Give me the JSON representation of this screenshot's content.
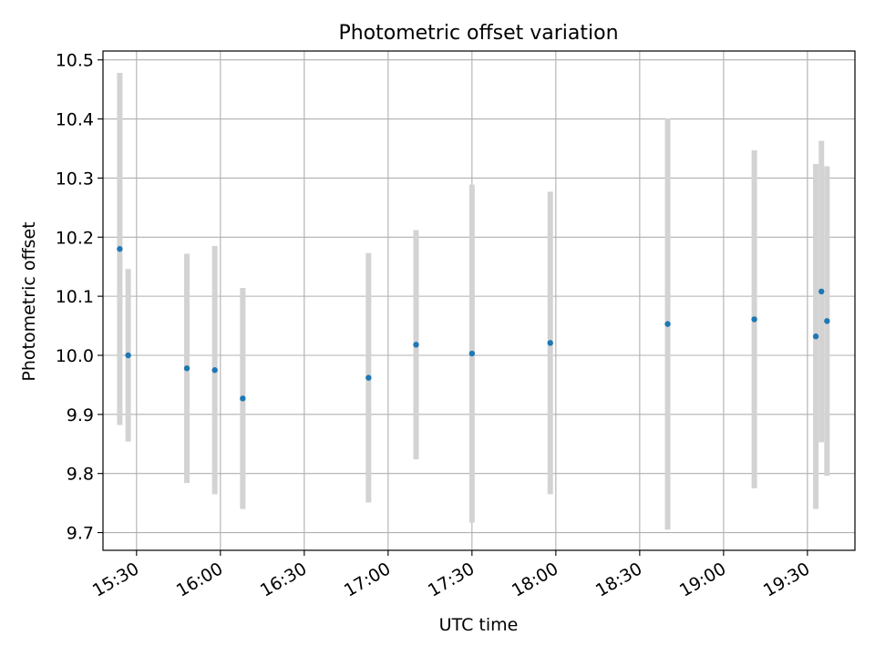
{
  "chart_data": {
    "type": "scatter",
    "title": "Photometric offset variation",
    "xlabel": "UTC time",
    "ylabel": "Photometric offset",
    "x_tick_labels": [
      "15:30",
      "16:00",
      "16:30",
      "17:00",
      "17:30",
      "18:00",
      "18:30",
      "19:00",
      "19:30"
    ],
    "y_tick_labels": [
      "9.7",
      "9.8",
      "9.9",
      "10.0",
      "10.1",
      "10.2",
      "10.3",
      "10.4",
      "10.5"
    ],
    "xlim": [
      "15:18",
      "19:47"
    ],
    "ylim": [
      9.67,
      10.515
    ],
    "grid": true,
    "marker_color": "#1f77b4",
    "errorbar_color": "#d3d3d3",
    "points": [
      {
        "x": "15:24",
        "y": 10.18,
        "err": 0.298
      },
      {
        "x": "15:27",
        "y": 10.0,
        "err": 0.146
      },
      {
        "x": "15:48",
        "y": 9.978,
        "err": 0.194
      },
      {
        "x": "15:58",
        "y": 9.975,
        "err": 0.21
      },
      {
        "x": "16:08",
        "y": 9.927,
        "err": 0.187
      },
      {
        "x": "16:53",
        "y": 9.962,
        "err": 0.211
      },
      {
        "x": "17:10",
        "y": 10.018,
        "err": 0.194
      },
      {
        "x": "17:30",
        "y": 10.003,
        "err": 0.286
      },
      {
        "x": "17:58",
        "y": 10.021,
        "err": 0.256
      },
      {
        "x": "18:40",
        "y": 10.053,
        "err": 0.348
      },
      {
        "x": "19:11",
        "y": 10.061,
        "err": 0.286
      },
      {
        "x": "19:33",
        "y": 10.032,
        "err": 0.292
      },
      {
        "x": "19:35",
        "y": 10.108,
        "err": 0.255
      },
      {
        "x": "19:37",
        "y": 10.058,
        "err": 0.262
      }
    ]
  }
}
